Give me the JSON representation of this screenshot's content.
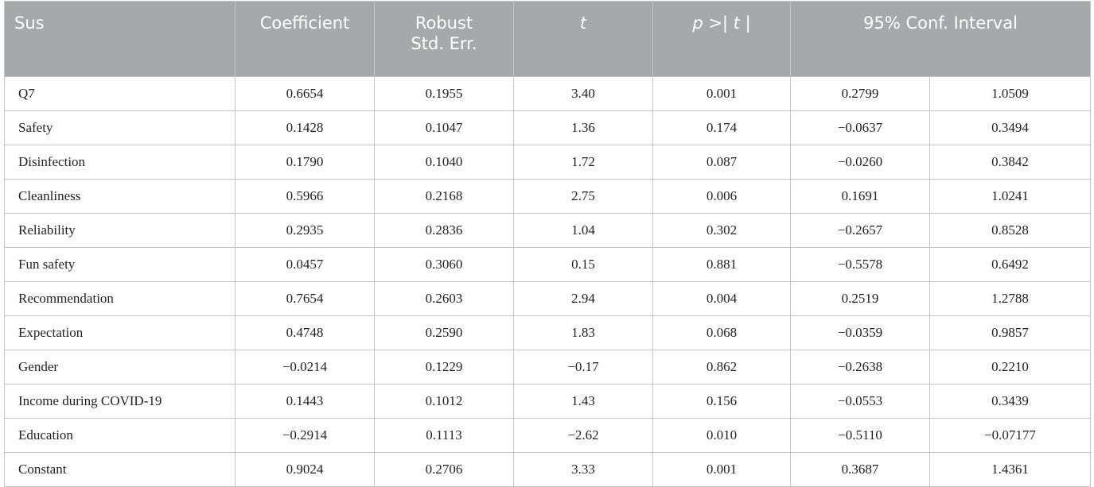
{
  "table": {
    "header": [
      "Sus",
      "Coefficient",
      [
        "Robust",
        "Std. Err."
      ],
      "t",
      "p >| t |",
      "95% Conf. Interval"
    ],
    "rows": [
      [
        "Q7",
        "0.6654",
        "0.1955",
        "3.40",
        "0.001",
        "0.2799",
        "1.0509"
      ],
      [
        "Safety",
        "0.1428",
        "0.1047",
        "1.36",
        "0.174",
        "−0.0637",
        "0.3494"
      ],
      [
        "Disinfection",
        "0.1790",
        "0.1040",
        "1.72",
        "0.087",
        "−0.0260",
        "0.3842"
      ],
      [
        "Cleanliness",
        "0.5966",
        "0.2168",
        "2.75",
        "0.006",
        "0.1691",
        "1.0241"
      ],
      [
        "Reliability",
        "0.2935",
        "0.2836",
        "1.04",
        "0.302",
        "−0.2657",
        "0.8528"
      ],
      [
        "Fun safety",
        "0.0457",
        "0.3060",
        "0.15",
        "0.881",
        "−0.5578",
        "0.6492"
      ],
      [
        "Recommendation",
        "0.7654",
        "0.2603",
        "2.94",
        "0.004",
        "0.2519",
        "1.2788"
      ],
      [
        "Expectation",
        "0.4748",
        "0.2590",
        "1.83",
        "0.068",
        "−0.0359",
        "0.9857"
      ],
      [
        "Gender",
        "−0.0214",
        "0.1229",
        "−0.17",
        "0.862",
        "−0.2638",
        "0.2210"
      ],
      [
        "Income during COVID-19",
        "0.1443",
        "0.1012",
        "1.43",
        "0.156",
        "−0.0553",
        "0.3439"
      ],
      [
        "Education",
        "−0.2914",
        "0.1113",
        "−2.62",
        "0.010",
        "−0.5110",
        "−0.07177"
      ],
      [
        "Constant",
        "0.9024",
        "0.2706",
        "3.33",
        "0.001",
        "0.3687",
        "1.4361"
      ]
    ]
  }
}
